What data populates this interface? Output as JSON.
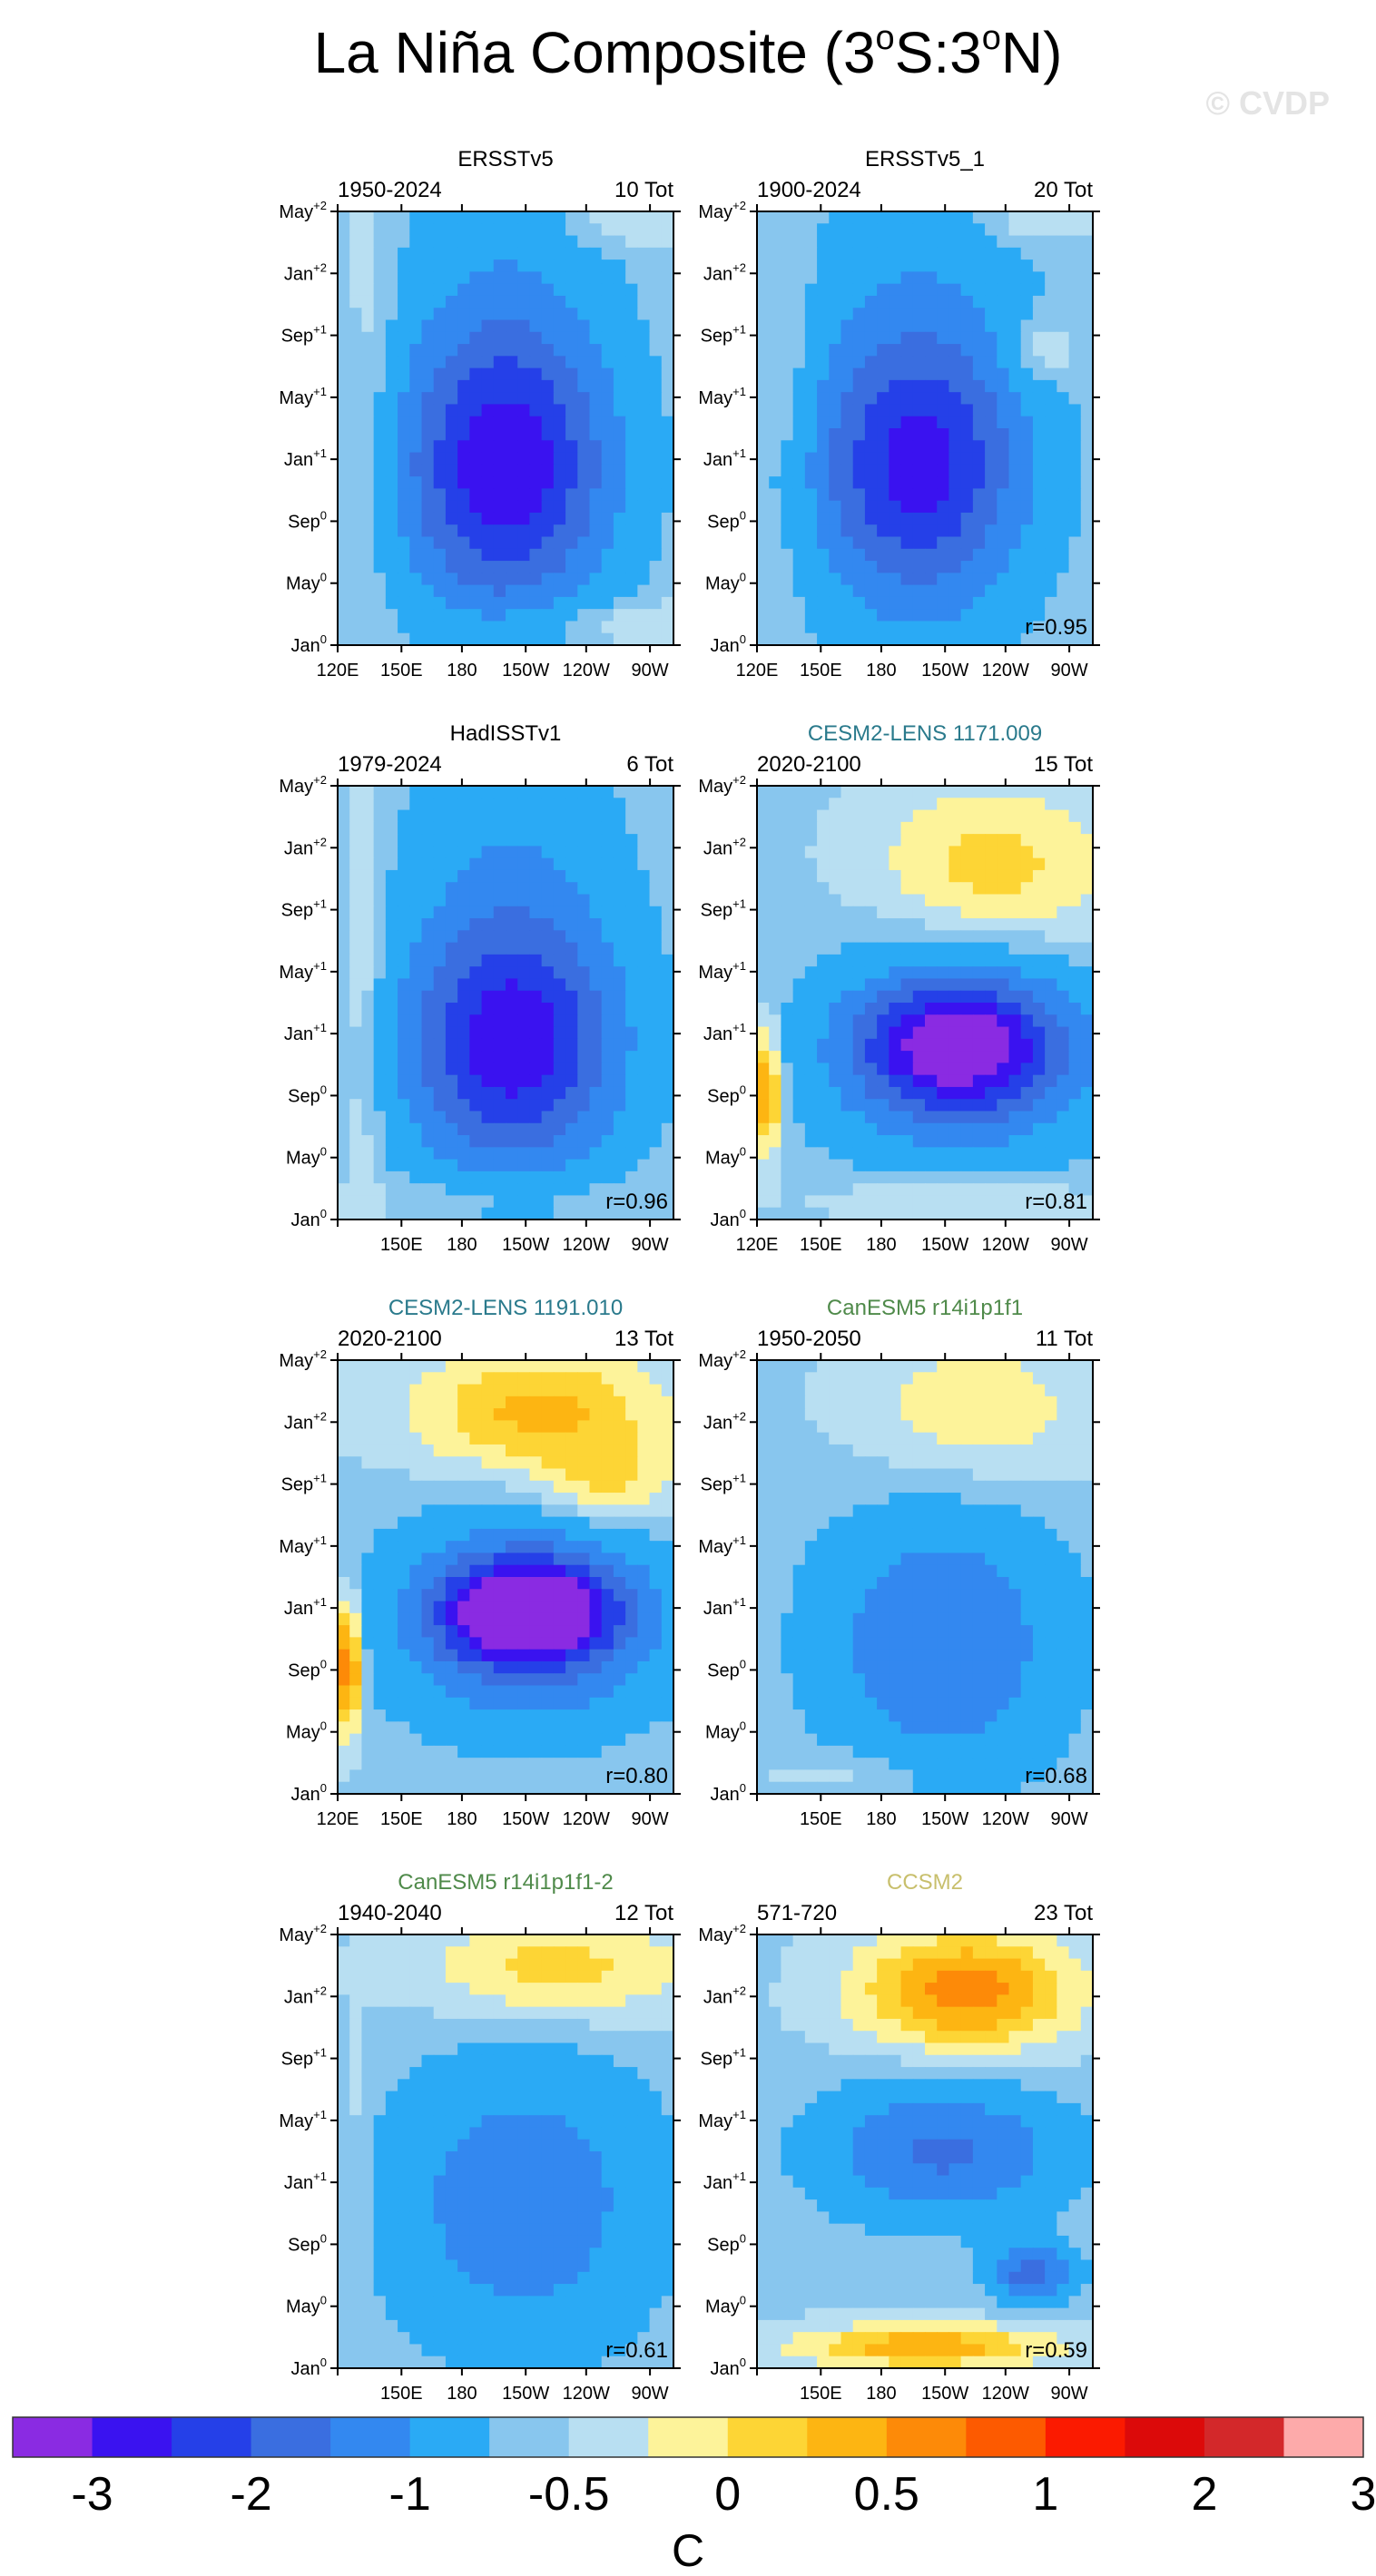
{
  "figure": {
    "title": "La Niña Composite (3",
    "title_parts": [
      "La Niña Composite (3",
      "o",
      "S:3",
      "o",
      "N)"
    ],
    "watermark": "© CVDP",
    "colorbar_unit": "C"
  },
  "chart_data": {
    "type": "heatmap",
    "x_ticks": [
      "120E",
      "150E",
      "180",
      "150W",
      "120W",
      "90W"
    ],
    "y_ticks": [
      {
        "base": "May",
        "sup": "+2"
      },
      {
        "base": "Jan",
        "sup": "+2"
      },
      {
        "base": "Sep",
        "sup": "+1"
      },
      {
        "base": "May",
        "sup": "+1"
      },
      {
        "base": "Jan",
        "sup": "+1"
      },
      {
        "base": "Sep",
        "sup": "0"
      },
      {
        "base": "May",
        "sup": "0"
      },
      {
        "base": "Jan",
        "sup": "0"
      }
    ],
    "colorbar": {
      "colors": [
        "#8a2be2",
        "#3a12f0",
        "#2540e8",
        "#3a6ee0",
        "#3388f0",
        "#2aaaf5",
        "#88c6ee",
        "#b8dff2",
        "#fdf39a",
        "#fdd535",
        "#fdb512",
        "#fd8a08",
        "#fd5a00",
        "#fb1a00",
        "#dc0a0a",
        "#d3282a",
        "#fdaaaa"
      ],
      "labels": [
        "-3",
        "-2",
        "-1",
        "-0.5",
        "0",
        "0.5",
        "1",
        "2",
        "3"
      ]
    },
    "panels": [
      {
        "name": "ERSSTv5",
        "name_color": "#000000",
        "period": "1950-2024",
        "count": "10 Tot",
        "r": "",
        "x_labels": [
          "120E",
          "150E",
          "180",
          "150W",
          "120W",
          "90W"
        ],
        "cores": [
          {
            "x": 0.5,
            "y": 0.6,
            "rx": 0.3,
            "ry": 0.3,
            "v": -1.9
          },
          {
            "x": 0.5,
            "y": 0.45,
            "rx": 0.32,
            "ry": 0.55,
            "v": -0.8
          },
          {
            "x": 0.1,
            "y": 0.4,
            "rx": 0.08,
            "ry": 0.5,
            "v": 0.3
          },
          {
            "x": 0.75,
            "y": 0.95,
            "rx": 0.4,
            "ry": 0.06,
            "v": 0.4
          },
          {
            "x": 0.85,
            "y": 0.02,
            "rx": 0.2,
            "ry": 0.06,
            "v": 0.4
          }
        ]
      },
      {
        "name": "ERSSTv5_1",
        "name_color": "#000000",
        "period": "1900-2024",
        "count": "20 Tot",
        "r": "r=0.95",
        "x_labels": [
          "120E",
          "150E",
          "180",
          "150W",
          "120W",
          "90W"
        ],
        "cores": [
          {
            "x": 0.48,
            "y": 0.6,
            "rx": 0.3,
            "ry": 0.28,
            "v": -1.7
          },
          {
            "x": 0.48,
            "y": 0.45,
            "rx": 0.33,
            "ry": 0.55,
            "v": -0.8
          },
          {
            "x": 0.1,
            "y": 0.45,
            "rx": 0.07,
            "ry": 0.4,
            "v": 0.3
          },
          {
            "x": 0.85,
            "y": 0.32,
            "rx": 0.1,
            "ry": 0.08,
            "v": 0.5
          },
          {
            "x": 0.85,
            "y": 0.02,
            "rx": 0.2,
            "ry": 0.05,
            "v": 0.4
          }
        ]
      },
      {
        "name": "HadISSTv1",
        "name_color": "#000000",
        "period": "1979-2024",
        "count": "6 Tot",
        "r": "r=0.96",
        "x_labels": [
          "",
          "150E",
          "180",
          "150W",
          "120W",
          "90W"
        ],
        "cores": [
          {
            "x": 0.52,
            "y": 0.6,
            "rx": 0.3,
            "ry": 0.25,
            "v": -1.8
          },
          {
            "x": 0.52,
            "y": 0.45,
            "rx": 0.33,
            "ry": 0.55,
            "v": -0.9
          },
          {
            "x": 0.08,
            "y": 0.5,
            "rx": 0.06,
            "ry": 0.5,
            "v": 0.4
          },
          {
            "x": 0.5,
            "y": 0.95,
            "rx": 0.35,
            "ry": 0.06,
            "v": 0.4
          }
        ]
      },
      {
        "name": "CESM2-LENS 1171.009",
        "name_color": "#2a7a8c",
        "period": "2020-2100",
        "count": "15 Tot",
        "r": "r=0.81",
        "x_labels": [
          "120E",
          "150E",
          "180",
          "150W",
          "120W",
          "90W"
        ],
        "cores": [
          {
            "x": 0.6,
            "y": 0.6,
            "rx": 0.28,
            "ry": 0.14,
            "v": -2.3
          },
          {
            "x": 0.6,
            "y": 0.62,
            "rx": 0.4,
            "ry": 0.25,
            "v": -1.2
          },
          {
            "x": 0.7,
            "y": 0.2,
            "rx": 0.35,
            "ry": 0.2,
            "v": 0.7
          },
          {
            "x": 0.03,
            "y": 0.7,
            "rx": 0.04,
            "ry": 0.15,
            "v": 1.2
          },
          {
            "x": 0.6,
            "y": 0.95,
            "rx": 0.4,
            "ry": 0.06,
            "v": 0.4
          }
        ]
      },
      {
        "name": "CESM2-LENS 1191.010",
        "name_color": "#2a7a8c",
        "period": "2020-2100",
        "count": "13 Tot",
        "r": "r=0.80",
        "x_labels": [
          "120E",
          "150E",
          "180",
          "150W",
          "120W",
          "90W"
        ],
        "cores": [
          {
            "x": 0.57,
            "y": 0.58,
            "rx": 0.22,
            "ry": 0.1,
            "v": -3.0
          },
          {
            "x": 0.57,
            "y": 0.6,
            "rx": 0.38,
            "ry": 0.22,
            "v": -1.8
          },
          {
            "x": 0.6,
            "y": 0.12,
            "rx": 0.38,
            "ry": 0.15,
            "v": 0.9
          },
          {
            "x": 0.03,
            "y": 0.7,
            "rx": 0.04,
            "ry": 0.15,
            "v": 1.5
          },
          {
            "x": 0.8,
            "y": 0.3,
            "rx": 0.2,
            "ry": 0.1,
            "v": 0.6
          }
        ]
      },
      {
        "name": "CanESM5 r14i1p1f1",
        "name_color": "#4f8a4a",
        "period": "1950-2050",
        "count": "11 Tot",
        "r": "r=0.68",
        "x_labels": [
          "",
          "150E",
          "180",
          "150W",
          "120W",
          "90W"
        ],
        "cores": [
          {
            "x": 0.55,
            "y": 0.65,
            "rx": 0.35,
            "ry": 0.3,
            "v": -1.2
          },
          {
            "x": 0.65,
            "y": 0.12,
            "rx": 0.35,
            "ry": 0.18,
            "v": 0.5
          },
          {
            "x": 0.3,
            "y": 0.95,
            "rx": 0.25,
            "ry": 0.05,
            "v": 0.3
          }
        ]
      },
      {
        "name": "CanESM5 r14i1p1f1-2",
        "name_color": "#4f8a4a",
        "period": "1940-2040",
        "count": "12 Tot",
        "r": "r=0.61",
        "x_labels": [
          "",
          "150E",
          "180",
          "150W",
          "120W",
          "90W"
        ],
        "cores": [
          {
            "x": 0.55,
            "y": 0.62,
            "rx": 0.38,
            "ry": 0.32,
            "v": -1.1
          },
          {
            "x": 0.65,
            "y": 0.08,
            "rx": 0.4,
            "ry": 0.12,
            "v": 0.7
          },
          {
            "x": 0.05,
            "y": 0.5,
            "rx": 0.04,
            "ry": 0.3,
            "v": 0.2
          }
        ]
      },
      {
        "name": "CCSM2",
        "name_color": "#c8bf6c",
        "period": "571-720",
        "count": "23 Tot",
        "r": "r=0.59",
        "x_labels": [
          "",
          "150E",
          "180",
          "150W",
          "120W",
          "90W"
        ],
        "cores": [
          {
            "x": 0.62,
            "y": 0.13,
            "rx": 0.32,
            "ry": 0.14,
            "v": 1.2
          },
          {
            "x": 0.55,
            "y": 0.5,
            "rx": 0.35,
            "ry": 0.15,
            "v": -1.3
          },
          {
            "x": 0.5,
            "y": 0.95,
            "rx": 0.4,
            "ry": 0.05,
            "v": 1.0
          },
          {
            "x": 0.82,
            "y": 0.78,
            "rx": 0.12,
            "ry": 0.06,
            "v": -1.5
          }
        ]
      }
    ]
  }
}
